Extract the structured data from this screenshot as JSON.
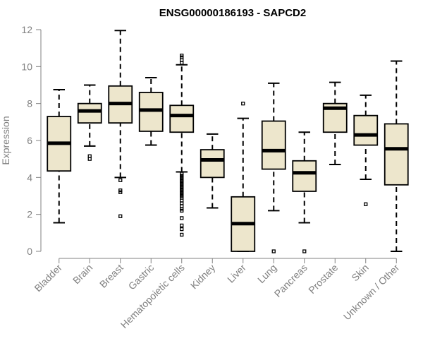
{
  "chart_data": {
    "type": "boxplot",
    "title": "ENSG00000186193 - SAPCD2",
    "xlabel": "",
    "ylabel": "Expression",
    "ylim": [
      0,
      12
    ],
    "yticks": [
      0,
      2,
      4,
      6,
      8,
      10,
      12
    ],
    "box_fill": "#ede6cc",
    "axis_color": "#808080",
    "categories": [
      "Bladder",
      "Brain",
      "Breast",
      "Gastric",
      "Hematopoietic cells",
      "Kidney",
      "Liver",
      "Lung",
      "Pancreas",
      "Prostate",
      "Skin",
      "Unknown / Other"
    ],
    "boxes": [
      {
        "category": "Bladder",
        "whisker_low": 1.55,
        "q1": 4.35,
        "median": 5.85,
        "q3": 7.3,
        "whisker_high": 8.75,
        "outliers": []
      },
      {
        "category": "Brain",
        "whisker_low": 5.7,
        "q1": 6.95,
        "median": 7.6,
        "q3": 8.0,
        "whisker_high": 9.0,
        "outliers": [
          5.0,
          5.15
        ]
      },
      {
        "category": "Breast",
        "whisker_low": 4.0,
        "q1": 6.95,
        "median": 8.0,
        "q3": 8.95,
        "whisker_high": 11.95,
        "outliers": [
          1.9,
          3.2,
          3.3,
          3.85
        ]
      },
      {
        "category": "Gastric",
        "whisker_low": 5.75,
        "q1": 6.5,
        "median": 7.65,
        "q3": 8.6,
        "whisker_high": 9.4,
        "outliers": []
      },
      {
        "category": "Hematopoietic cells",
        "whisker_low": 4.3,
        "q1": 6.45,
        "median": 7.35,
        "q3": 7.9,
        "whisker_high": 10.1,
        "outliers": [
          0.9,
          1.2,
          1.4,
          1.8,
          2.2,
          2.3,
          2.45,
          2.6,
          2.75,
          2.9,
          3.0,
          3.1,
          3.2,
          3.3,
          3.4,
          3.5,
          3.6,
          3.7,
          3.8,
          3.9,
          4.0,
          4.1,
          4.2,
          10.2,
          10.35,
          10.5,
          10.6
        ]
      },
      {
        "category": "Kidney",
        "whisker_low": 2.35,
        "q1": 4.0,
        "median": 4.95,
        "q3": 5.5,
        "whisker_high": 6.35,
        "outliers": []
      },
      {
        "category": "Liver",
        "whisker_low": 0.0,
        "q1": 0.0,
        "median": 1.5,
        "q3": 2.95,
        "whisker_high": 7.2,
        "outliers": [
          8.0
        ]
      },
      {
        "category": "Lung",
        "whisker_low": 2.2,
        "q1": 4.45,
        "median": 5.45,
        "q3": 7.05,
        "whisker_high": 9.1,
        "outliers": [
          0.0
        ]
      },
      {
        "category": "Pancreas",
        "whisker_low": 1.55,
        "q1": 3.25,
        "median": 4.25,
        "q3": 4.9,
        "whisker_high": 6.45,
        "outliers": [
          0.0
        ]
      },
      {
        "category": "Prostate",
        "whisker_low": 4.7,
        "q1": 6.45,
        "median": 7.75,
        "q3": 8.0,
        "whisker_high": 9.15,
        "outliers": []
      },
      {
        "category": "Skin",
        "whisker_low": 3.9,
        "q1": 5.75,
        "median": 6.3,
        "q3": 7.35,
        "whisker_high": 8.45,
        "outliers": [
          2.55
        ]
      },
      {
        "category": "Unknown / Other",
        "whisker_low": 0.0,
        "q1": 3.6,
        "median": 5.55,
        "q3": 6.9,
        "whisker_high": 10.3,
        "outliers": []
      }
    ]
  }
}
